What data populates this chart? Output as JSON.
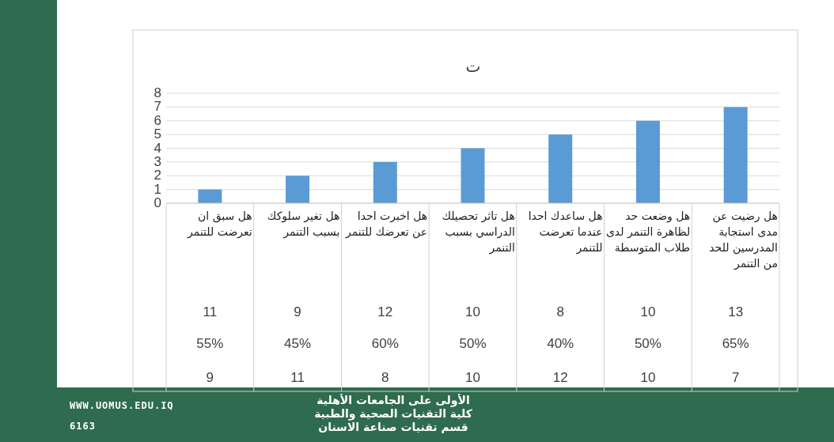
{
  "chart_data": {
    "type": "bar",
    "title": "ت",
    "categories": [
      "هل سبق ان تعرضت للتنمر",
      "هل تغير سلوكك بسبب التنمر",
      "هل اخبرت احدا عن تعرضك للتنمر",
      "هل تاثر تحصيلك الدراسي بسبب التنمر",
      "هل ساعدك احدا عندما تعرضت للتنمر",
      "هل وضعت حد لظاهرة التنمر لدى طلاب المتوسطة",
      "هل رضيت عن مدى استجابة المدرسين للحد من التنمر"
    ],
    "values": [
      1,
      2,
      3,
      4,
      5,
      6,
      7
    ],
    "color": "#5b9bd5",
    "ylim": [
      0,
      8
    ],
    "yticks": [
      0,
      1,
      2,
      3,
      4,
      5,
      6,
      7,
      8
    ],
    "grid": "y",
    "annotations": [
      "11",
      "9",
      "12",
      "10",
      "8",
      "10",
      "13",
      "55%",
      "45%",
      "60%",
      "50%",
      "40%",
      "50%",
      "65%",
      "9",
      "11",
      "8",
      "10",
      "12",
      "10",
      "7",
      "الأولى على الجامعات الأهلية",
      "كلية التقنيات الصحية والطبية",
      "قسم تقنيات صناعة الاسنان",
      "WWW.UOMUS.EDU.IQ",
      "6163"
    ]
  }
}
